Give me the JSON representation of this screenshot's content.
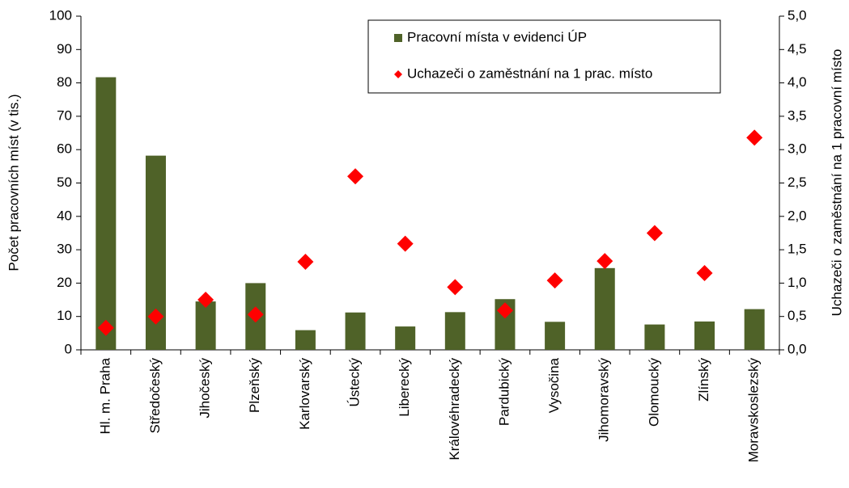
{
  "chart_data": {
    "type": "bar",
    "categories": [
      "Hl. m. Praha",
      "Středočeský",
      "Jihočeský",
      "Plzeňský",
      "Karlovarský",
      "Ústecký",
      "Liberecký",
      "Královéhradecký",
      "Pardubický",
      "Vysočina",
      "Jihomoravský",
      "Olomoucký",
      "Zlínský",
      "Moravskoslezský"
    ],
    "series": [
      {
        "name": "Pracovní místa v evidenci ÚP",
        "type": "bar",
        "color": "#4f6228",
        "values": [
          81.7,
          58.2,
          14.5,
          20,
          5.9,
          11.2,
          7,
          11.3,
          15.2,
          8.4,
          24.5,
          7.6,
          8.5,
          12.2
        ]
      },
      {
        "name": "Uchazeči o zaměstnání na 1 prac. místo",
        "type": "scatter",
        "axis": "y2",
        "color": "#ff0000",
        "values": [
          0.33,
          0.5,
          0.75,
          0.53,
          1.32,
          2.6,
          1.59,
          0.94,
          0.59,
          1.04,
          1.33,
          1.75,
          1.15,
          3.18
        ]
      }
    ],
    "y_label": "Počet pracovních míst (v tis.)",
    "y2_label": "Uchazeči o zaměstnání na 1 pracovní místo",
    "ylim": [
      0,
      100
    ],
    "yticks": [
      0,
      10,
      20,
      30,
      40,
      50,
      60,
      70,
      80,
      90,
      100
    ],
    "y2lim": [
      0,
      5
    ],
    "y2ticks": [
      {
        "value": 0,
        "label": "0,0"
      },
      {
        "value": 0.5,
        "label": "0,5"
      },
      {
        "value": 1,
        "label": "1,0"
      },
      {
        "value": 1.5,
        "label": "1,5"
      },
      {
        "value": 2,
        "label": "2,0"
      },
      {
        "value": 2.5,
        "label": "2,5"
      },
      {
        "value": 3,
        "label": "3,0"
      },
      {
        "value": 3.5,
        "label": "3,5"
      },
      {
        "value": 4,
        "label": "4,0"
      },
      {
        "value": 4.5,
        "label": "4,5"
      },
      {
        "value": 5,
        "label": "5,0"
      }
    ],
    "grid": false,
    "legend": "upper right"
  }
}
